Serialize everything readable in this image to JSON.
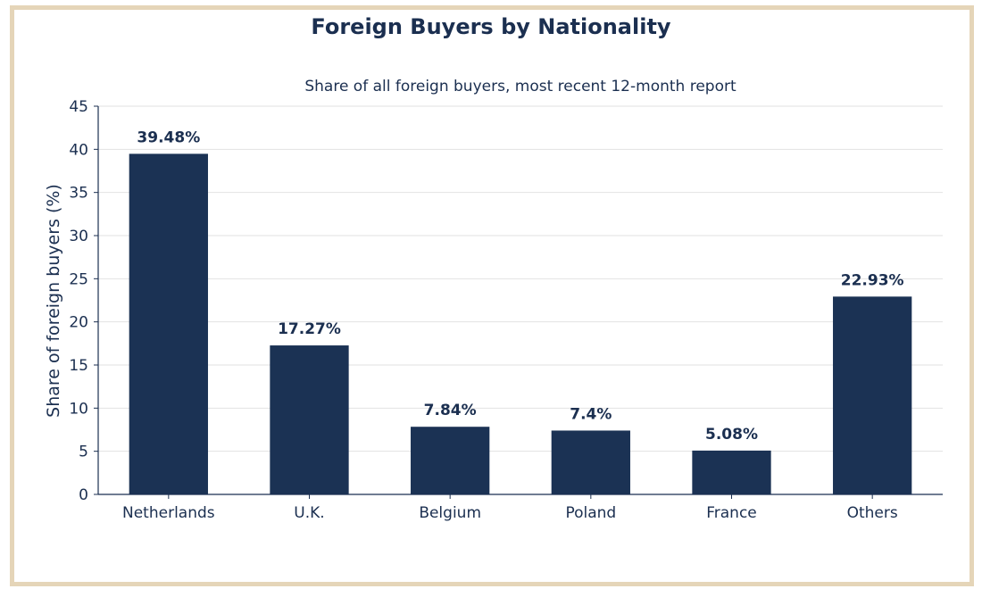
{
  "colors": {
    "bar": "#1b3254",
    "text": "#1b2f50",
    "grid": "#e2e2e2",
    "frame": "#e5d5b8"
  },
  "chart_data": {
    "type": "bar",
    "title": "Foreign Buyers by Nationality",
    "subtitle": "Share of all foreign buyers, most recent 12-month report",
    "xlabel": "",
    "ylabel": "Share of foreign buyers (%)",
    "categories": [
      "Netherlands",
      "U.K.",
      "Belgium",
      "Poland",
      "France",
      "Others"
    ],
    "values": [
      39.48,
      17.27,
      7.84,
      7.4,
      5.08,
      22.93
    ],
    "data_labels": [
      "39.48%",
      "17.27%",
      "7.84%",
      "7.4%",
      "5.08%",
      "22.93%"
    ],
    "ylim": [
      0,
      45
    ],
    "yticks": [
      0,
      5,
      10,
      15,
      20,
      25,
      30,
      35,
      40,
      45
    ],
    "grid": true,
    "legend": "none"
  }
}
